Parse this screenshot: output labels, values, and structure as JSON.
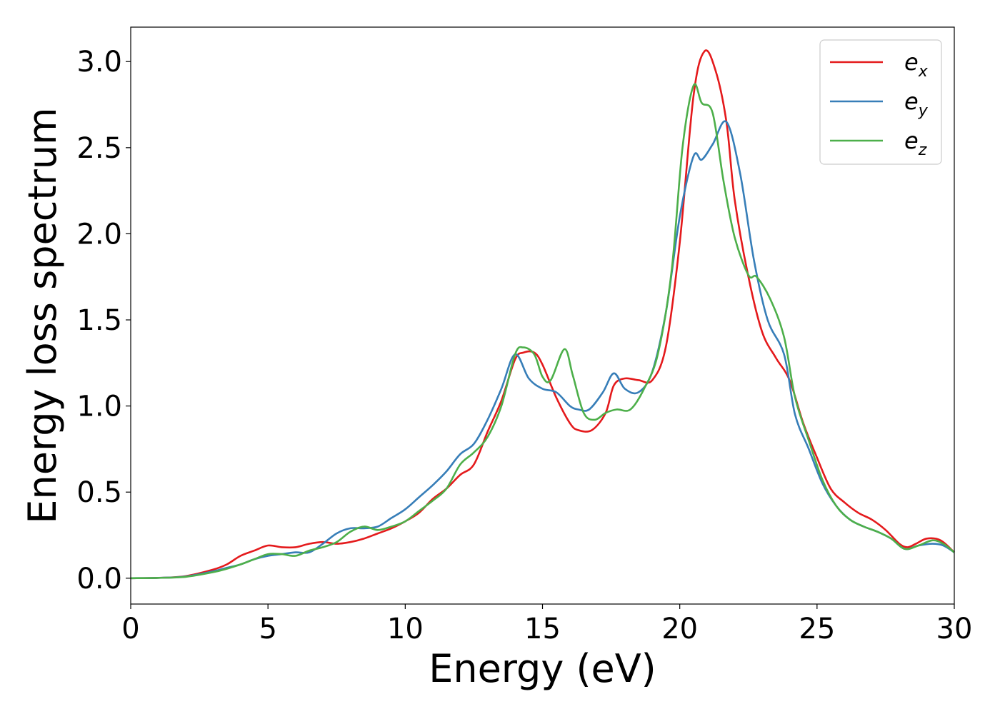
{
  "chart_data": {
    "type": "line",
    "title": "",
    "xlabel": "Energy (eV)",
    "ylabel": "Energy loss spectrum",
    "xlim": [
      0,
      30
    ],
    "ylim": [
      -0.15,
      3.2
    ],
    "xticks": [
      0,
      5,
      10,
      15,
      20,
      25,
      30
    ],
    "xtick_labels": [
      "0",
      "5",
      "10",
      "15",
      "20",
      "25",
      "30"
    ],
    "yticks": [
      0.0,
      0.5,
      1.0,
      1.5,
      2.0,
      2.5,
      3.0
    ],
    "ytick_labels": [
      "0.0",
      "0.5",
      "1.0",
      "1.5",
      "2.0",
      "2.5",
      "3.0"
    ],
    "grid": false,
    "legend_position": "top-right",
    "series": [
      {
        "name": "e",
        "sub": "x",
        "color": "#e41a1c",
        "points": [
          [
            0,
            0
          ],
          [
            1,
            0.002
          ],
          [
            2,
            0.012
          ],
          [
            3,
            0.05
          ],
          [
            3.5,
            0.08
          ],
          [
            4,
            0.13
          ],
          [
            4.5,
            0.16
          ],
          [
            5,
            0.19
          ],
          [
            5.5,
            0.18
          ],
          [
            6,
            0.18
          ],
          [
            6.5,
            0.2
          ],
          [
            7,
            0.21
          ],
          [
            7.5,
            0.2
          ],
          [
            8,
            0.21
          ],
          [
            8.5,
            0.23
          ],
          [
            9,
            0.26
          ],
          [
            9.5,
            0.29
          ],
          [
            10,
            0.33
          ],
          [
            10.5,
            0.38
          ],
          [
            11,
            0.46
          ],
          [
            11.5,
            0.52
          ],
          [
            12,
            0.6
          ],
          [
            12.5,
            0.66
          ],
          [
            13,
            0.85
          ],
          [
            13.5,
            1.03
          ],
          [
            14,
            1.27
          ],
          [
            14.3,
            1.31
          ],
          [
            14.7,
            1.31
          ],
          [
            15,
            1.24
          ],
          [
            15.5,
            1.05
          ],
          [
            16,
            0.9
          ],
          [
            16.3,
            0.86
          ],
          [
            16.8,
            0.86
          ],
          [
            17.3,
            0.96
          ],
          [
            17.6,
            1.12
          ],
          [
            18,
            1.16
          ],
          [
            18.5,
            1.15
          ],
          [
            19,
            1.15
          ],
          [
            19.5,
            1.35
          ],
          [
            20,
            1.95
          ],
          [
            20.5,
            2.8
          ],
          [
            20.9,
            3.06
          ],
          [
            21.3,
            2.95
          ],
          [
            21.7,
            2.65
          ],
          [
            22,
            2.2
          ],
          [
            22.5,
            1.75
          ],
          [
            23,
            1.43
          ],
          [
            23.5,
            1.28
          ],
          [
            24,
            1.15
          ],
          [
            24.5,
            0.9
          ],
          [
            25,
            0.7
          ],
          [
            25.5,
            0.52
          ],
          [
            26,
            0.44
          ],
          [
            26.5,
            0.38
          ],
          [
            27,
            0.34
          ],
          [
            27.5,
            0.28
          ],
          [
            28,
            0.2
          ],
          [
            28.3,
            0.18
          ],
          [
            28.6,
            0.2
          ],
          [
            29,
            0.23
          ],
          [
            29.5,
            0.22
          ],
          [
            30,
            0.15
          ]
        ]
      },
      {
        "name": "e",
        "sub": "y",
        "color": "#377eb8",
        "points": [
          [
            0,
            0
          ],
          [
            1,
            0.002
          ],
          [
            2,
            0.01
          ],
          [
            3,
            0.04
          ],
          [
            3.5,
            0.06
          ],
          [
            4,
            0.08
          ],
          [
            4.5,
            0.11
          ],
          [
            5,
            0.13
          ],
          [
            5.5,
            0.14
          ],
          [
            6,
            0.15
          ],
          [
            6.5,
            0.15
          ],
          [
            7,
            0.2
          ],
          [
            7.5,
            0.26
          ],
          [
            8,
            0.29
          ],
          [
            8.5,
            0.29
          ],
          [
            9,
            0.3
          ],
          [
            9.5,
            0.35
          ],
          [
            10,
            0.4
          ],
          [
            10.5,
            0.47
          ],
          [
            11,
            0.54
          ],
          [
            11.5,
            0.62
          ],
          [
            12,
            0.72
          ],
          [
            12.5,
            0.78
          ],
          [
            13,
            0.92
          ],
          [
            13.5,
            1.1
          ],
          [
            14,
            1.3
          ],
          [
            14.5,
            1.16
          ],
          [
            15,
            1.1
          ],
          [
            15.5,
            1.08
          ],
          [
            16,
            1.0
          ],
          [
            16.3,
            0.98
          ],
          [
            16.7,
            0.98
          ],
          [
            17.2,
            1.08
          ],
          [
            17.6,
            1.19
          ],
          [
            18,
            1.1
          ],
          [
            18.5,
            1.08
          ],
          [
            19,
            1.2
          ],
          [
            19.5,
            1.55
          ],
          [
            20,
            2.1
          ],
          [
            20.5,
            2.45
          ],
          [
            20.8,
            2.43
          ],
          [
            21.2,
            2.52
          ],
          [
            21.7,
            2.65
          ],
          [
            22.2,
            2.35
          ],
          [
            22.7,
            1.85
          ],
          [
            23.2,
            1.5
          ],
          [
            23.8,
            1.3
          ],
          [
            24.2,
            0.95
          ],
          [
            24.7,
            0.75
          ],
          [
            25.2,
            0.55
          ],
          [
            25.7,
            0.42
          ],
          [
            26.2,
            0.34
          ],
          [
            26.7,
            0.3
          ],
          [
            27.2,
            0.27
          ],
          [
            27.7,
            0.23
          ],
          [
            28.2,
            0.17
          ],
          [
            28.7,
            0.19
          ],
          [
            29.2,
            0.2
          ],
          [
            29.6,
            0.19
          ],
          [
            30,
            0.15
          ]
        ]
      },
      {
        "name": "e",
        "sub": "z",
        "color": "#4daf4a",
        "points": [
          [
            0,
            0
          ],
          [
            1,
            0.002
          ],
          [
            2,
            0.008
          ],
          [
            3,
            0.035
          ],
          [
            3.5,
            0.055
          ],
          [
            4,
            0.08
          ],
          [
            4.5,
            0.11
          ],
          [
            5,
            0.14
          ],
          [
            5.5,
            0.14
          ],
          [
            6,
            0.13
          ],
          [
            6.5,
            0.16
          ],
          [
            7,
            0.18
          ],
          [
            7.5,
            0.21
          ],
          [
            8,
            0.27
          ],
          [
            8.5,
            0.3
          ],
          [
            9,
            0.28
          ],
          [
            9.5,
            0.3
          ],
          [
            10,
            0.33
          ],
          [
            10.5,
            0.39
          ],
          [
            11,
            0.45
          ],
          [
            11.5,
            0.52
          ],
          [
            12,
            0.66
          ],
          [
            12.5,
            0.73
          ],
          [
            13,
            0.82
          ],
          [
            13.5,
            1.0
          ],
          [
            14,
            1.3
          ],
          [
            14.3,
            1.34
          ],
          [
            14.7,
            1.3
          ],
          [
            15,
            1.17
          ],
          [
            15.3,
            1.15
          ],
          [
            15.8,
            1.33
          ],
          [
            16.1,
            1.18
          ],
          [
            16.5,
            0.96
          ],
          [
            16.9,
            0.92
          ],
          [
            17.3,
            0.96
          ],
          [
            17.7,
            0.98
          ],
          [
            18.2,
            0.98
          ],
          [
            18.7,
            1.1
          ],
          [
            19.2,
            1.3
          ],
          [
            19.7,
            1.78
          ],
          [
            20.1,
            2.5
          ],
          [
            20.5,
            2.86
          ],
          [
            20.8,
            2.76
          ],
          [
            21.2,
            2.7
          ],
          [
            21.6,
            2.3
          ],
          [
            22,
            1.98
          ],
          [
            22.5,
            1.76
          ],
          [
            22.8,
            1.75
          ],
          [
            23.3,
            1.62
          ],
          [
            23.8,
            1.4
          ],
          [
            24.2,
            1.05
          ],
          [
            24.7,
            0.8
          ],
          [
            25.2,
            0.57
          ],
          [
            25.7,
            0.42
          ],
          [
            26.2,
            0.34
          ],
          [
            26.7,
            0.3
          ],
          [
            27.2,
            0.27
          ],
          [
            27.7,
            0.23
          ],
          [
            28.2,
            0.17
          ],
          [
            28.7,
            0.19
          ],
          [
            29.2,
            0.22
          ],
          [
            29.6,
            0.2
          ],
          [
            30,
            0.15
          ]
        ]
      }
    ]
  }
}
